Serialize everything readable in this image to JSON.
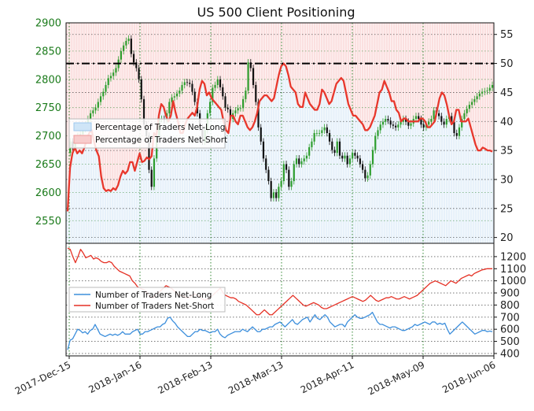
{
  "chart_data": [
    {
      "type": "line",
      "title": "US 500 Client Positioning",
      "x_ticks": [
        "2017-Dec-15",
        "2018-Jan-16",
        "2018-Feb-13",
        "2018-Mar-13",
        "2018-Apr-11",
        "2018-May-09",
        "2018-Jun-06"
      ],
      "y_left": {
        "ticks": [
          2550,
          2600,
          2650,
          2700,
          2750,
          2800,
          2850,
          2900
        ],
        "range": [
          2510,
          2900
        ],
        "color": "#1a7a1a"
      },
      "y_right": {
        "ticks": [
          20,
          25,
          30,
          35,
          40,
          45,
          50,
          55
        ],
        "range": [
          19,
          57
        ]
      },
      "reference_line": {
        "value": 50,
        "axis": "right",
        "style": "dash-dot"
      },
      "grid": true,
      "legend": {
        "position": "center-left",
        "entries": [
          "Percentage of Traders Net-Long",
          "Percentage of Traders Net-Short"
        ]
      },
      "series": [
        {
          "name": "Percentage of Traders Net-Short",
          "axis": "right",
          "color": "#e8372c",
          "values": [
            24.5,
            32,
            34.5,
            35.5,
            34.5,
            35,
            34.5,
            35.5,
            37,
            38,
            38.5,
            36.5,
            35,
            34,
            30.5,
            28.5,
            28,
            28.2,
            28,
            28.5,
            28.2,
            29,
            30.5,
            31.5,
            31,
            31.5,
            33,
            33,
            31.5,
            33,
            34.5,
            33,
            33.2,
            33.8,
            33.5,
            34,
            38,
            37.5,
            41,
            43,
            42.5,
            41,
            40,
            41,
            43.5,
            41.5,
            40,
            38,
            38,
            39.5,
            40.5,
            41,
            41.5,
            41,
            42.5,
            45.5,
            47,
            46.5,
            44.5,
            45,
            44,
            43.5,
            43,
            42.5,
            42,
            40,
            38.5,
            38,
            41,
            41,
            40,
            39.5,
            41,
            41,
            40,
            39,
            38.5,
            39,
            40,
            41.5,
            43.5,
            44,
            44.5,
            44.5,
            44,
            43.5,
            44,
            46,
            48,
            49.5,
            50,
            49.5,
            48,
            46,
            45.5,
            45,
            43,
            42.5,
            42.5,
            45,
            44,
            43,
            42.5,
            42,
            42,
            43,
            45.5,
            45,
            44,
            43,
            43.5,
            45,
            46.5,
            47,
            47.5,
            47,
            45,
            43,
            42,
            41,
            41,
            40.5,
            40,
            39.5,
            38.5,
            38.5,
            39,
            40,
            41,
            43,
            45,
            45.5,
            47,
            46,
            45,
            43.5,
            43.5,
            42,
            41.5,
            40,
            40.5,
            40.5,
            40,
            40,
            40,
            40,
            40,
            40.5,
            40.5,
            40,
            39,
            39,
            39.5,
            40,
            42,
            44,
            45,
            44.5,
            43,
            41,
            39.5,
            40,
            42,
            42,
            40,
            40,
            40,
            40.5,
            39,
            37.5,
            36,
            35,
            35,
            35.5,
            35.3,
            35,
            35,
            34.8
          ]
        },
        {
          "name": "Percentage of Traders Net-Long",
          "axis": "right",
          "color": "#4f9fdf",
          "values": []
        },
        {
          "name": "US 500",
          "axis": "left",
          "color": "#1a7a1a",
          "values": [
            2670,
            2690,
            2680,
            2692,
            2700,
            2703,
            2712,
            2720,
            2730,
            2740,
            2745,
            2750,
            2760,
            2770,
            2778,
            2790,
            2802,
            2806,
            2812,
            2820,
            2835,
            2850,
            2860,
            2868,
            2872,
            2845,
            2830,
            2820,
            2800,
            2765,
            2720,
            2700,
            2640,
            2610,
            2660,
            2700,
            2730,
            2730,
            2728,
            2740,
            2760,
            2768,
            2770,
            2775,
            2780,
            2790,
            2795,
            2794,
            2792,
            2778,
            2760,
            2740,
            2715,
            2690,
            2710,
            2740,
            2760,
            2785,
            2790,
            2800,
            2786,
            2770,
            2750,
            2747,
            2730,
            2740,
            2745,
            2749,
            2749,
            2765,
            2780,
            2830,
            2820,
            2790,
            2760,
            2715,
            2690,
            2660,
            2640,
            2620,
            2590,
            2600,
            2590,
            2610,
            2620,
            2650,
            2640,
            2610,
            2620,
            2650,
            2660,
            2650,
            2655,
            2660,
            2665,
            2680,
            2690,
            2705,
            2705,
            2705,
            2710,
            2715,
            2705,
            2690,
            2675,
            2670,
            2690,
            2665,
            2660,
            2665,
            2650,
            2660,
            2670,
            2665,
            2660,
            2650,
            2640,
            2625,
            2630,
            2650,
            2675,
            2700,
            2710,
            2720,
            2725,
            2730,
            2727,
            2720,
            2718,
            2715,
            2720,
            2725,
            2730,
            2725,
            2718,
            2722,
            2730,
            2735,
            2730,
            2720,
            2715,
            2720,
            2725,
            2730,
            2745,
            2740,
            2735,
            2725,
            2720,
            2730,
            2735,
            2725,
            2705,
            2700,
            2715,
            2730,
            2740,
            2748,
            2755,
            2760,
            2765,
            2770,
            2775,
            2778,
            2779,
            2780,
            2785,
            2790
          ]
        }
      ]
    },
    {
      "type": "line",
      "y_right": {
        "ticks": [
          400,
          500,
          600,
          700,
          800,
          900,
          1000,
          1100,
          1200
        ],
        "range": [
          380,
          1310
        ]
      },
      "grid": true,
      "legend": {
        "position": "center-left",
        "entries": [
          "Number of Traders Net-Long",
          "Number of Traders Net-Short"
        ]
      },
      "series": [
        {
          "name": "Number of Traders Net-Long",
          "color": "#3d8fdc",
          "values": [
            430,
            510,
            520,
            560,
            600,
            590,
            570,
            580,
            560,
            590,
            600,
            640,
            600,
            560,
            550,
            540,
            550,
            560,
            550,
            560,
            550,
            560,
            580,
            560,
            560,
            560,
            580,
            590,
            600,
            560,
            560,
            580,
            580,
            590,
            600,
            610,
            620,
            620,
            640,
            650,
            690,
            700,
            670,
            650,
            620,
            600,
            580,
            560,
            540,
            540,
            560,
            580,
            580,
            600,
            590,
            590,
            580,
            570,
            580,
            580,
            600,
            560,
            540,
            530,
            550,
            560,
            570,
            580,
            580,
            580,
            600,
            590,
            580,
            600,
            620,
            600,
            580,
            580,
            600,
            600,
            610,
            620,
            620,
            640,
            650,
            660,
            640,
            620,
            640,
            660,
            680,
            650,
            640,
            660,
            680,
            690,
            700,
            660,
            690,
            720,
            690,
            680,
            700,
            720,
            700,
            660,
            640,
            620,
            630,
            640,
            640,
            620,
            660,
            680,
            700,
            720,
            700,
            690,
            690,
            700,
            710,
            720,
            740,
            700,
            660,
            640,
            640,
            630,
            620,
            610,
            620,
            620,
            610,
            600,
            590,
            590,
            600,
            610,
            620,
            640,
            630,
            640,
            650,
            660,
            650,
            640,
            660,
            660,
            640,
            650,
            640,
            650,
            600,
            560,
            580,
            600,
            620,
            640,
            660,
            640,
            620,
            600,
            580,
            560,
            570,
            580,
            590,
            590,
            580,
            585,
            580
          ]
        },
        {
          "name": "Number of Traders Net-Short",
          "color": "#e53125",
          "values": [
            1270,
            1260,
            1200,
            1150,
            1200,
            1260,
            1230,
            1190,
            1200,
            1210,
            1180,
            1190,
            1180,
            1160,
            1150,
            1150,
            1160,
            1150,
            1120,
            1100,
            1080,
            1070,
            1060,
            1050,
            1040,
            1000,
            980,
            950,
            940,
            930,
            920,
            890,
            860,
            860,
            880,
            900,
            920,
            940,
            960,
            950,
            940,
            920,
            900,
            880,
            880,
            870,
            860,
            860,
            880,
            890,
            880,
            870,
            850,
            840,
            850,
            860,
            880,
            900,
            920,
            940,
            900,
            880,
            870,
            860,
            860,
            850,
            830,
            820,
            810,
            800,
            780,
            760,
            740,
            720,
            720,
            740,
            760,
            740,
            720,
            720,
            740,
            760,
            780,
            800,
            820,
            840,
            860,
            880,
            860,
            840,
            820,
            800,
            790,
            800,
            810,
            820,
            810,
            800,
            780,
            770,
            770,
            780,
            790,
            800,
            810,
            820,
            830,
            840,
            850,
            860,
            870,
            860,
            850,
            840,
            830,
            840,
            860,
            880,
            860,
            840,
            830,
            840,
            850,
            860,
            860,
            870,
            860,
            850,
            850,
            860,
            870,
            860,
            850,
            860,
            870,
            880,
            900,
            920,
            940,
            960,
            980,
            990,
            1000,
            990,
            980,
            970,
            960,
            980,
            1000,
            990,
            980,
            1000,
            1020,
            1030,
            1040,
            1050,
            1040,
            1060,
            1070,
            1080,
            1090,
            1095,
            1100,
            1100,
            1100
          ]
        }
      ]
    }
  ]
}
